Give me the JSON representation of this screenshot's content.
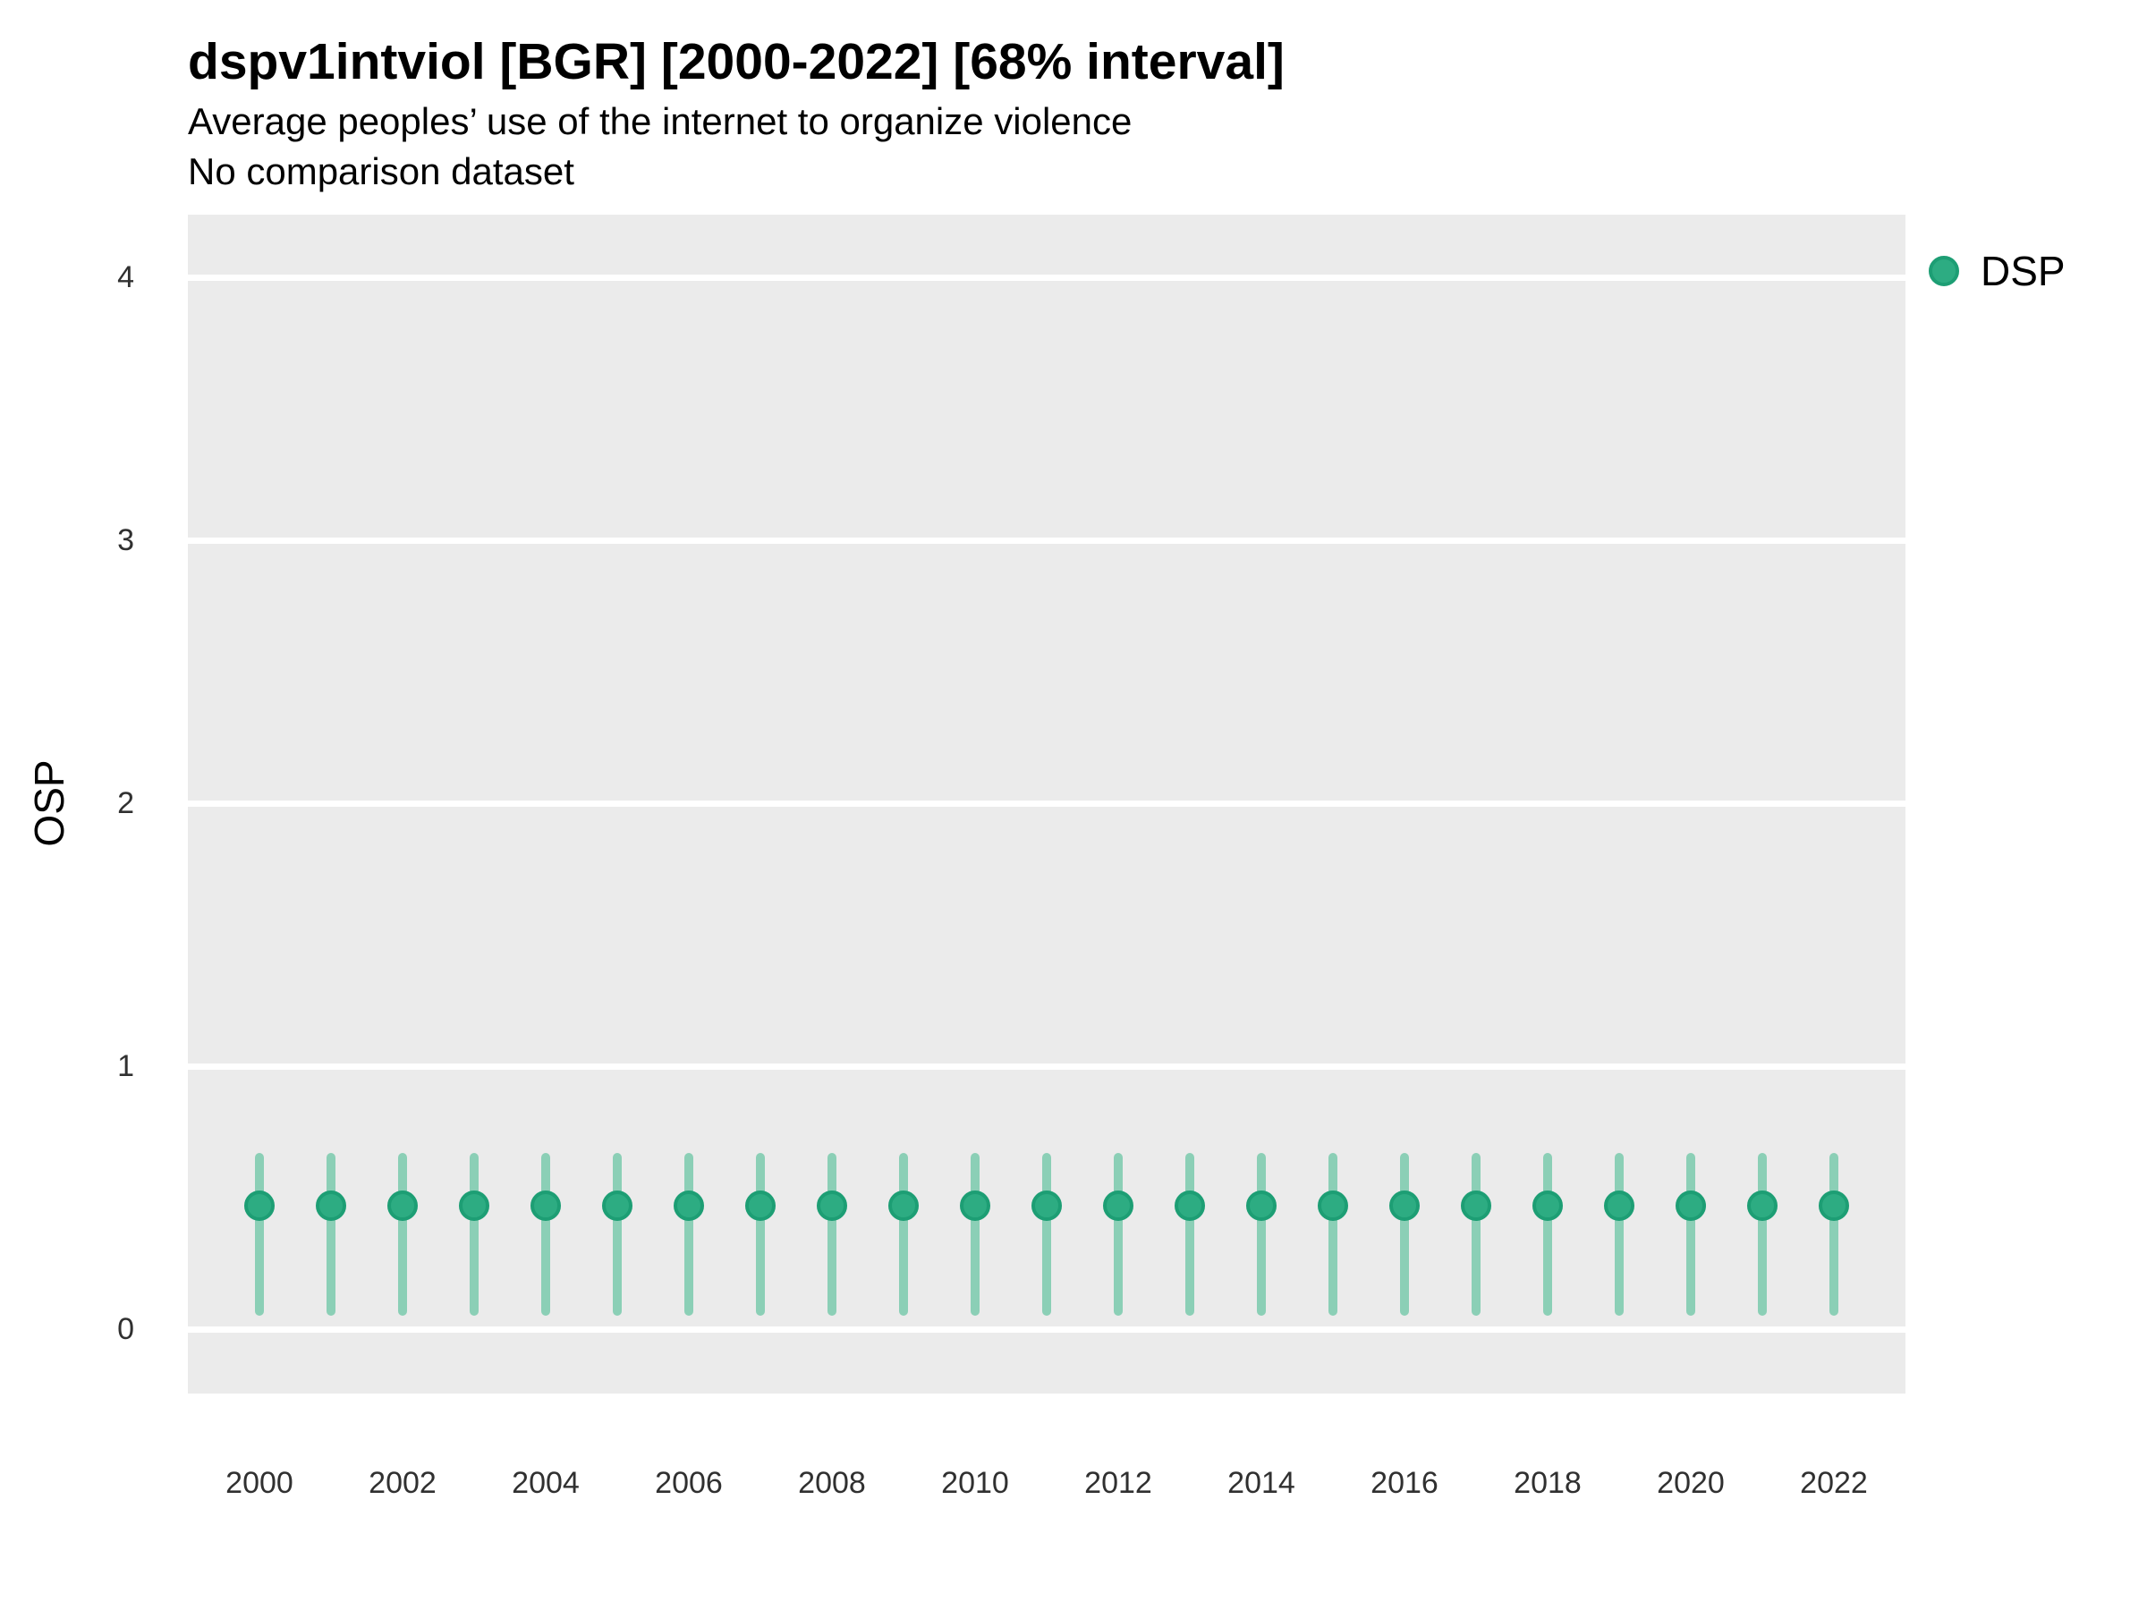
{
  "chart_data": {
    "type": "scatter",
    "title": "dspv1intviol [BGR] [2000-2022] [68% interval]",
    "subtitle": "Average peoples’ use of the internet to organize violence",
    "note": "No comparison dataset",
    "xlabel": "",
    "ylabel": "OSP",
    "x": [
      2000,
      2001,
      2002,
      2003,
      2004,
      2005,
      2006,
      2007,
      2008,
      2009,
      2010,
      2011,
      2012,
      2013,
      2014,
      2015,
      2016,
      2017,
      2018,
      2019,
      2020,
      2021,
      2022
    ],
    "series": [
      {
        "name": "DSP",
        "values": [
          0.47,
          0.47,
          0.47,
          0.47,
          0.47,
          0.47,
          0.47,
          0.47,
          0.47,
          0.47,
          0.47,
          0.47,
          0.47,
          0.47,
          0.47,
          0.47,
          0.47,
          0.47,
          0.47,
          0.47,
          0.47,
          0.47,
          0.47
        ],
        "lo": [
          0.05,
          0.05,
          0.05,
          0.05,
          0.05,
          0.05,
          0.05,
          0.05,
          0.05,
          0.05,
          0.05,
          0.05,
          0.05,
          0.05,
          0.05,
          0.05,
          0.05,
          0.05,
          0.05,
          0.05,
          0.05,
          0.05,
          0.05
        ],
        "hi": [
          0.67,
          0.67,
          0.67,
          0.67,
          0.67,
          0.67,
          0.67,
          0.67,
          0.67,
          0.67,
          0.67,
          0.67,
          0.67,
          0.67,
          0.67,
          0.67,
          0.67,
          0.67,
          0.67,
          0.67,
          0.67,
          0.67,
          0.67
        ]
      }
    ],
    "xticks": [
      2000,
      2002,
      2004,
      2006,
      2008,
      2010,
      2012,
      2014,
      2016,
      2018,
      2020,
      2022
    ],
    "yticks": [
      0,
      1,
      2,
      3,
      4
    ],
    "ylim": [
      -0.25,
      4.25
    ],
    "interval": "68%",
    "grid": "horizontal-major-only",
    "legend": {
      "position": "right-top",
      "entries": [
        {
          "label": "DSP",
          "color": "#2DAC82",
          "border": "#1D9E74"
        }
      ]
    },
    "colors": {
      "point": "#2DAC82",
      "point_border": "#1D9E74",
      "interval_bar": "#8BCFB6",
      "panel_bg": "#EBEBEB",
      "gridline": "#FFFFFF",
      "axis_text": "#303030",
      "text": "#000000"
    }
  }
}
